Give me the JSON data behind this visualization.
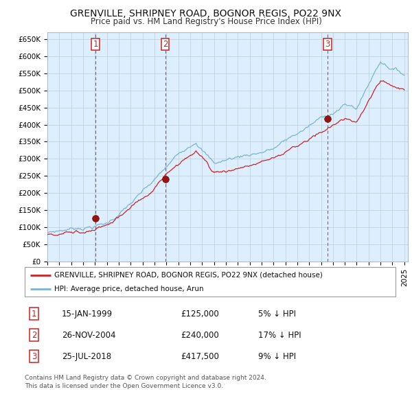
{
  "title": "GRENVILLE, SHRIPNEY ROAD, BOGNOR REGIS, PO22 9NX",
  "subtitle": "Price paid vs. HM Land Registry's House Price Index (HPI)",
  "ylim": [
    0,
    670000
  ],
  "yticks": [
    0,
    50000,
    100000,
    150000,
    200000,
    250000,
    300000,
    350000,
    400000,
    450000,
    500000,
    550000,
    600000,
    650000
  ],
  "ytick_labels": [
    "£0",
    "£50K",
    "£100K",
    "£150K",
    "£200K",
    "£250K",
    "£300K",
    "£350K",
    "£400K",
    "£450K",
    "£500K",
    "£550K",
    "£600K",
    "£650K"
  ],
  "hpi_color": "#7ab3d4",
  "sold_color": "#cc2222",
  "chart_bg_color": "#ddeeff",
  "transactions": [
    {
      "date": 1999.04,
      "price": 125000,
      "label": "1"
    },
    {
      "date": 2004.9,
      "price": 240000,
      "label": "2"
    },
    {
      "date": 2018.56,
      "price": 417500,
      "label": "3"
    }
  ],
  "legend_sold_label": "GRENVILLE, SHRIPNEY ROAD, BOGNOR REGIS, PO22 9NX (detached house)",
  "legend_hpi_label": "HPI: Average price, detached house, Arun",
  "table_rows": [
    {
      "num": "1",
      "date": "15-JAN-1999",
      "price": "£125,000",
      "note": "5% ↓ HPI"
    },
    {
      "num": "2",
      "date": "26-NOV-2004",
      "price": "£240,000",
      "note": "17% ↓ HPI"
    },
    {
      "num": "3",
      "date": "25-JUL-2018",
      "price": "£417,500",
      "note": "9% ↓ HPI"
    }
  ],
  "footer": "Contains HM Land Registry data © Crown copyright and database right 2024.\nThis data is licensed under the Open Government Licence v3.0.",
  "background_color": "#ffffff",
  "grid_color": "#bbccdd"
}
